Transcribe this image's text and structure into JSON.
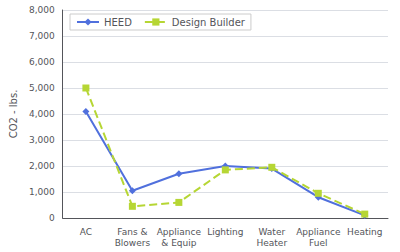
{
  "chart_data": {
    "type": "line",
    "categories": [
      "AC",
      "Fans &\nBlowers",
      "Appliance\n& Equip",
      "Lighting",
      "Water\nHeater",
      "Appliance\nFuel",
      "Heating"
    ],
    "series": [
      {
        "name": "HEED",
        "values": [
          4100,
          1050,
          1700,
          2000,
          1900,
          800,
          100
        ],
        "marker": "diamond",
        "line_style": "solid"
      },
      {
        "name": "Design Builder",
        "values": [
          5000,
          450,
          600,
          1850,
          1950,
          950,
          150
        ],
        "marker": "square",
        "line_style": "dashed"
      }
    ],
    "ylabel": "CO2 - lbs.",
    "ylim": [
      0,
      8000
    ],
    "yticks": [
      0,
      {
        "value": 1000,
        "label": "1,000"
      },
      {
        "value": 2000,
        "label": "2,000"
      },
      {
        "value": 3000,
        "label": "3,000"
      },
      {
        "value": 4000,
        "label": "4,000"
      },
      {
        "value": 5000,
        "label": "5,000"
      },
      {
        "value": 6000,
        "label": "6,000"
      },
      {
        "value": 7000,
        "label": "7,000"
      },
      {
        "value": 8000,
        "label": "8,000"
      }
    ],
    "grid": true,
    "legend": "upper left"
  }
}
